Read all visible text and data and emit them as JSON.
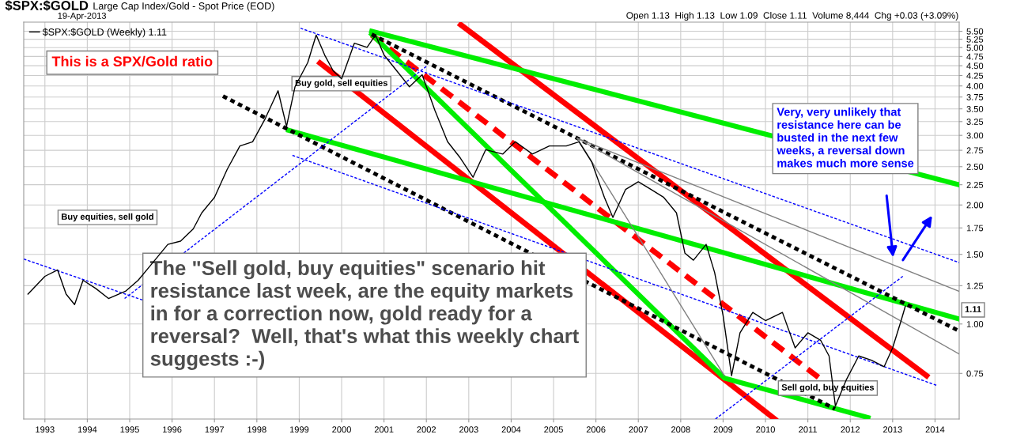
{
  "chart_data": {
    "type": "line",
    "title": "$SPX:$GOLD",
    "subtitle": "Large Cap Index/Gold - Spot Price (EOD)",
    "log": "y",
    "grid": true,
    "legend": "top left",
    "marker": "none",
    "xlim": [
      1992.5,
      2014.57
    ],
    "xticks": [
      1993,
      1994,
      1995,
      1996,
      1997,
      1998,
      1999,
      2000,
      2001,
      2002,
      2003,
      2004,
      2005,
      2006,
      2007,
      2008,
      2009,
      2010,
      2011,
      2012,
      2013,
      2014
    ],
    "ylim": [
      0.575,
      5.8
    ],
    "yticks": [
      {
        "value": 0.75,
        "label": "0.75"
      },
      {
        "value": 1.0,
        "label": "1.00"
      },
      {
        "value": 1.25,
        "label": "1.25"
      },
      {
        "value": 1.5,
        "label": "1.50"
      },
      {
        "value": 1.75,
        "label": "1.75"
      },
      {
        "value": 2.0,
        "label": "2.00"
      },
      {
        "value": 2.25,
        "label": "2.25"
      },
      {
        "value": 2.5,
        "label": "2.50"
      },
      {
        "value": 2.75,
        "label": "2.75"
      },
      {
        "value": 3.0,
        "label": "3.00"
      },
      {
        "value": 3.25,
        "label": "3.25"
      },
      {
        "value": 3.5,
        "label": "3.50"
      },
      {
        "value": 3.75,
        "label": "3.75"
      },
      {
        "value": 4.0,
        "label": "4.00"
      },
      {
        "value": 4.25,
        "label": "4.25"
      },
      {
        "value": 4.5,
        "label": "4.50"
      },
      {
        "value": 4.75,
        "label": "4.75"
      },
      {
        "value": 5.0,
        "label": "5.00"
      },
      {
        "value": 5.25,
        "label": "5.25"
      },
      {
        "value": 5.5,
        "label": "5.50"
      }
    ],
    "series": [
      {
        "name": "$SPX:$GOLD (Weekly) 1.11",
        "color": "#000000",
        "line_style": "solid",
        "x": [
          1992.6,
          1993.0,
          1993.3,
          1993.5,
          1993.7,
          1993.9,
          1994.2,
          1994.5,
          1994.9,
          1995.2,
          1995.5,
          1995.9,
          1996.2,
          1996.5,
          1996.7,
          1997.0,
          1997.3,
          1997.6,
          1997.9,
          1998.2,
          1998.5,
          1998.7,
          1998.9,
          1999.2,
          1999.4,
          1999.6,
          1999.8,
          2000.0,
          2000.3,
          2000.6,
          2000.8,
          2001.0,
          2001.3,
          2001.6,
          2001.9,
          2002.2,
          2002.5,
          2002.8,
          2003.1,
          2003.4,
          2003.8,
          2004.1,
          2004.5,
          2004.9,
          2005.3,
          2005.6,
          2005.9,
          2006.2,
          2006.4,
          2006.7,
          2007.0,
          2007.3,
          2007.6,
          2007.9,
          2008.1,
          2008.3,
          2008.6,
          2008.8,
          2009.0,
          2009.2,
          2009.4,
          2009.7,
          2010.0,
          2010.4,
          2010.7,
          2011.0,
          2011.3,
          2011.5,
          2011.65,
          2011.9,
          2012.2,
          2012.5,
          2012.8,
          2013.0,
          2013.2,
          2013.3
        ],
        "values": [
          1.19,
          1.32,
          1.37,
          1.19,
          1.12,
          1.29,
          1.23,
          1.16,
          1.21,
          1.29,
          1.41,
          1.59,
          1.62,
          1.74,
          1.91,
          2.09,
          2.46,
          2.82,
          2.89,
          3.31,
          3.89,
          3.16,
          3.98,
          4.58,
          5.38,
          4.79,
          4.37,
          4.17,
          5.13,
          5.01,
          5.38,
          4.79,
          4.37,
          3.98,
          4.27,
          3.47,
          2.89,
          2.63,
          2.35,
          2.76,
          2.69,
          2.89,
          2.69,
          2.82,
          2.82,
          2.89,
          2.57,
          2.09,
          1.86,
          2.19,
          2.29,
          2.19,
          2.09,
          1.91,
          1.51,
          1.45,
          1.59,
          1.35,
          1.05,
          0.74,
          0.95,
          1.07,
          1.02,
          1.07,
          0.87,
          0.95,
          0.91,
          0.83,
          0.62,
          0.72,
          0.83,
          0.81,
          0.78,
          0.87,
          1.02,
          1.11
        ]
      },
      {
        "type": "line",
        "color": "#ff0000",
        "line_style": "solid",
        "x": [
          1999.49,
          2010.22
        ],
        "values": [
          4.57,
          0.575
        ]
      },
      {
        "type": "line",
        "color": "#ff0000",
        "line_style": "solid",
        "x": [
          2002.81,
          2013.8
        ],
        "values": [
          5.71,
          0.74
        ]
      },
      {
        "type": "line",
        "color": "#ff0000",
        "line_style": "dashed",
        "x": [
          2000.71,
          2011.27
        ],
        "values": [
          5.38,
          0.73
        ]
      },
      {
        "type": "line",
        "color": "#00ee00",
        "line_style": "solid",
        "x": [
          2000.71,
          2014.57
        ],
        "values": [
          5.5,
          2.25
        ]
      },
      {
        "type": "line",
        "color": "#00ee00",
        "line_style": "solid",
        "x": [
          1998.75,
          2014.57
        ],
        "values": [
          3.09,
          1.03
        ]
      },
      {
        "type": "line",
        "color": "#00ee00",
        "line_style": "solid",
        "x": [
          2000.71,
          2009.03,
          2012.42
        ],
        "values": [
          5.4,
          0.73,
          0.58
        ]
      },
      {
        "type": "line",
        "color": "#000000",
        "line_style": "dotted",
        "x": [
          2000.71,
          2014.57
        ],
        "values": [
          5.4,
          0.96
        ]
      },
      {
        "type": "line",
        "color": "#000000",
        "line_style": "dotted",
        "x": [
          1997.2,
          2011.64
        ],
        "values": [
          3.77,
          0.61
        ]
      },
      {
        "type": "line",
        "color": "#0000ff",
        "line_style": "dashed",
        "x": [
          1992.5,
          1995.3
        ],
        "values": [
          1.46,
          1.15
        ]
      },
      {
        "type": "line",
        "color": "#0000ff",
        "line_style": "dashed",
        "x": [
          1999.03,
          2014.57
        ],
        "values": [
          5.6,
          1.43
        ]
      },
      {
        "type": "line",
        "color": "#0000ff",
        "line_style": "dashed",
        "x": [
          1998.84,
          2014.03
        ],
        "values": [
          2.67,
          0.7
        ]
      },
      {
        "type": "line",
        "color": "#0000ff",
        "line_style": "dashed",
        "x": [
          2008.82,
          2013.24
        ],
        "values": [
          0.575,
          1.32
        ]
      },
      {
        "type": "line",
        "color": "#0000ff",
        "line_style": "dashed",
        "x": [
          1994.88,
          2002.01
        ],
        "values": [
          1.16,
          4.49
        ]
      },
      {
        "type": "line",
        "color": "#808080",
        "line_style": "solid",
        "x": [
          2005.56,
          2014.57
        ],
        "values": [
          2.95,
          1.21
        ]
      },
      {
        "type": "line",
        "color": "#808080",
        "line_style": "solid",
        "x": [
          2005.56,
          2014.57
        ],
        "values": [
          2.95,
          0.84
        ]
      },
      {
        "type": "line",
        "color": "#808080",
        "line_style": "solid",
        "x": [
          2005.56,
          2009.03
        ],
        "values": [
          2.95,
          0.74
        ]
      }
    ],
    "annotations": [
      "19-Apr-2013",
      "Open 1.13  High 1.13  Low 1.09  Close 1.11  Volume 8,444  Chg +0.03 (+3.09%)",
      "This is a SPX/Gold ratio",
      "Buy gold, sell equities",
      "Buy equities, sell gold",
      "Sell gold, buy equities",
      "Very, very unlikely that\nresistance here can be\nbusted in the next few\nweeks, a reversal down\nmakes much more sense",
      "The \"Sell gold, buy equities\" scenario hit\nresistance last week, are the equity markets\nin for a correction now, gold ready for a\nreversal?  Well, that's what this weekly chart\nsuggests :-)",
      "1.11"
    ]
  }
}
